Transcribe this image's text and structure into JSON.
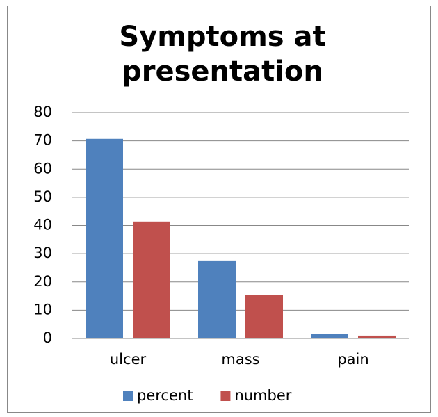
{
  "chart_data": {
    "type": "bar",
    "title": "Symptoms at presentation",
    "categories": [
      "ulcer",
      "mass",
      "pain"
    ],
    "series": [
      {
        "name": "percent",
        "color": "#4f81bd",
        "values": [
          70.7,
          27.6,
          1.7
        ]
      },
      {
        "name": "number",
        "color": "#c0504d",
        "values": [
          41.4,
          15.5,
          1
        ]
      }
    ],
    "ylim": [
      0,
      80
    ],
    "yticks": [
      0,
      10,
      20,
      30,
      40,
      50,
      60,
      70,
      80
    ],
    "grid": true,
    "legend": "bottom"
  }
}
